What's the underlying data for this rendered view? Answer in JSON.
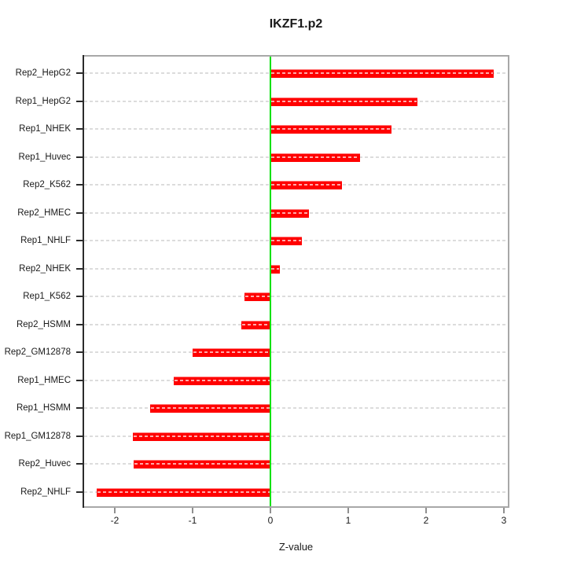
{
  "chart_data": {
    "type": "bar",
    "orientation": "horizontal",
    "title": "IKZF1.p2",
    "xlabel": "Z-value",
    "x_ticks": [
      -2,
      -1,
      0,
      1,
      2,
      3
    ],
    "xlim": [
      -2.41,
      3.07
    ],
    "grid": "light dashed horizontal line per category",
    "legend": "none",
    "zero_reference_line": 0,
    "categories": [
      "Rep2_HepG2",
      "Rep1_HepG2",
      "Rep1_NHEK",
      "Rep1_Huvec",
      "Rep2_K562",
      "Rep2_HMEC",
      "Rep1_NHLF",
      "Rep2_NHEK",
      "Rep1_K562",
      "Rep2_HSMM",
      "Rep2_GM12878",
      "Rep1_HMEC",
      "Rep1_HSMM",
      "Rep1_GM12878",
      "Rep2_Huvec",
      "Rep2_NHLF"
    ],
    "values": [
      2.87,
      1.89,
      1.56,
      1.15,
      0.92,
      0.49,
      0.4,
      0.12,
      -0.33,
      -0.37,
      -1.0,
      -1.24,
      -1.55,
      -1.77,
      -1.76,
      -2.23
    ],
    "colors": {
      "bar": "#ff0000",
      "bar_top_highlight": "#ff7e7e",
      "bar_dash_overlay": "#ffaaaa",
      "zero_line": "#00e104",
      "gridline": "#dcdcdc",
      "box_border": "#a8a8a8",
      "y_axis": "#2b2b2b",
      "x_tick": "#909090",
      "text": "#1a1a1a"
    }
  }
}
